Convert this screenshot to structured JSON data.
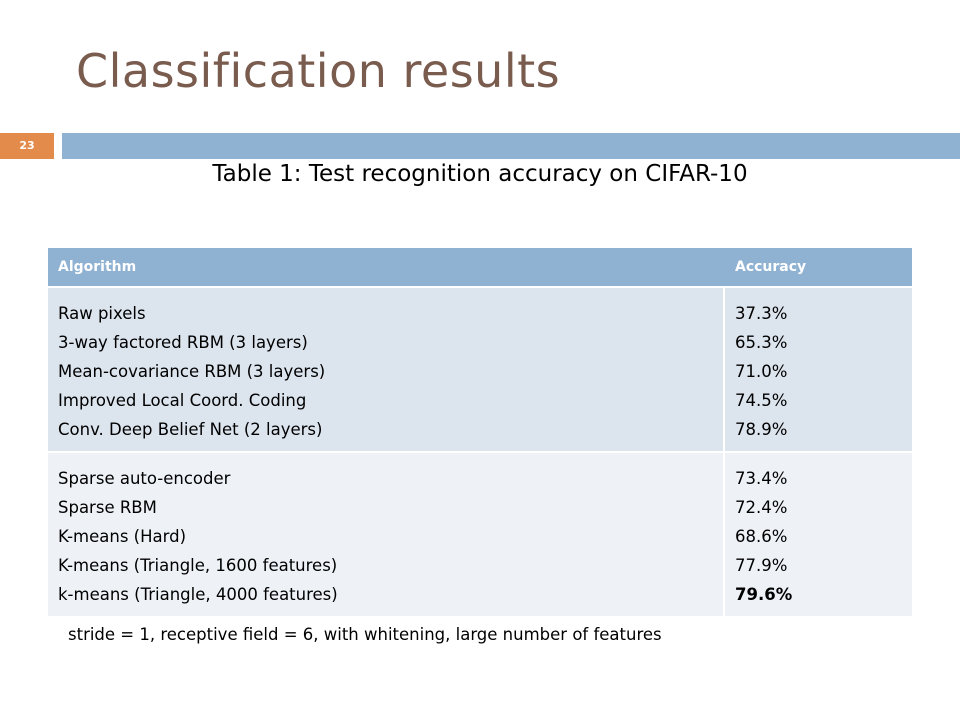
{
  "slide": {
    "title": "Classification results",
    "page_number": "23",
    "caption": "Table 1: Test recognition accuracy on CIFAR-10",
    "footnote": "stride = 1, receptive field = 6, with whitening, large number of features"
  },
  "table": {
    "headers": [
      "Algorithm",
      "Accuracy"
    ],
    "groups": [
      {
        "rows": [
          {
            "algorithm": "Raw pixels",
            "accuracy": "37.3%"
          },
          {
            "algorithm": "3-way factored RBM (3 layers)",
            "accuracy": "65.3%"
          },
          {
            "algorithm": "Mean-covariance RBM (3 layers)",
            "accuracy": "71.0%"
          },
          {
            "algorithm": "Improved Local Coord. Coding",
            "accuracy": "74.5%"
          },
          {
            "algorithm": "Conv. Deep Belief Net (2 layers)",
            "accuracy": "78.9%"
          }
        ]
      },
      {
        "rows": [
          {
            "algorithm": "Sparse auto-encoder",
            "accuracy": "73.4%"
          },
          {
            "algorithm": "Sparse RBM",
            "accuracy": "72.4%"
          },
          {
            "algorithm": "K-means (Hard)",
            "accuracy": "68.6%"
          },
          {
            "algorithm": "K-means (Triangle, 1600 features)",
            "accuracy": "77.9%"
          },
          {
            "algorithm": "k-means (Triangle, 4000 features)",
            "accuracy": "79.6%",
            "best": true
          }
        ]
      }
    ]
  },
  "colors": {
    "title": "#7a5c4f",
    "accent_orange": "#e38b4b",
    "header_blue": "#8fb1d2",
    "row_band_1": "#dce4ee",
    "row_band_2": "#eef2f7"
  }
}
